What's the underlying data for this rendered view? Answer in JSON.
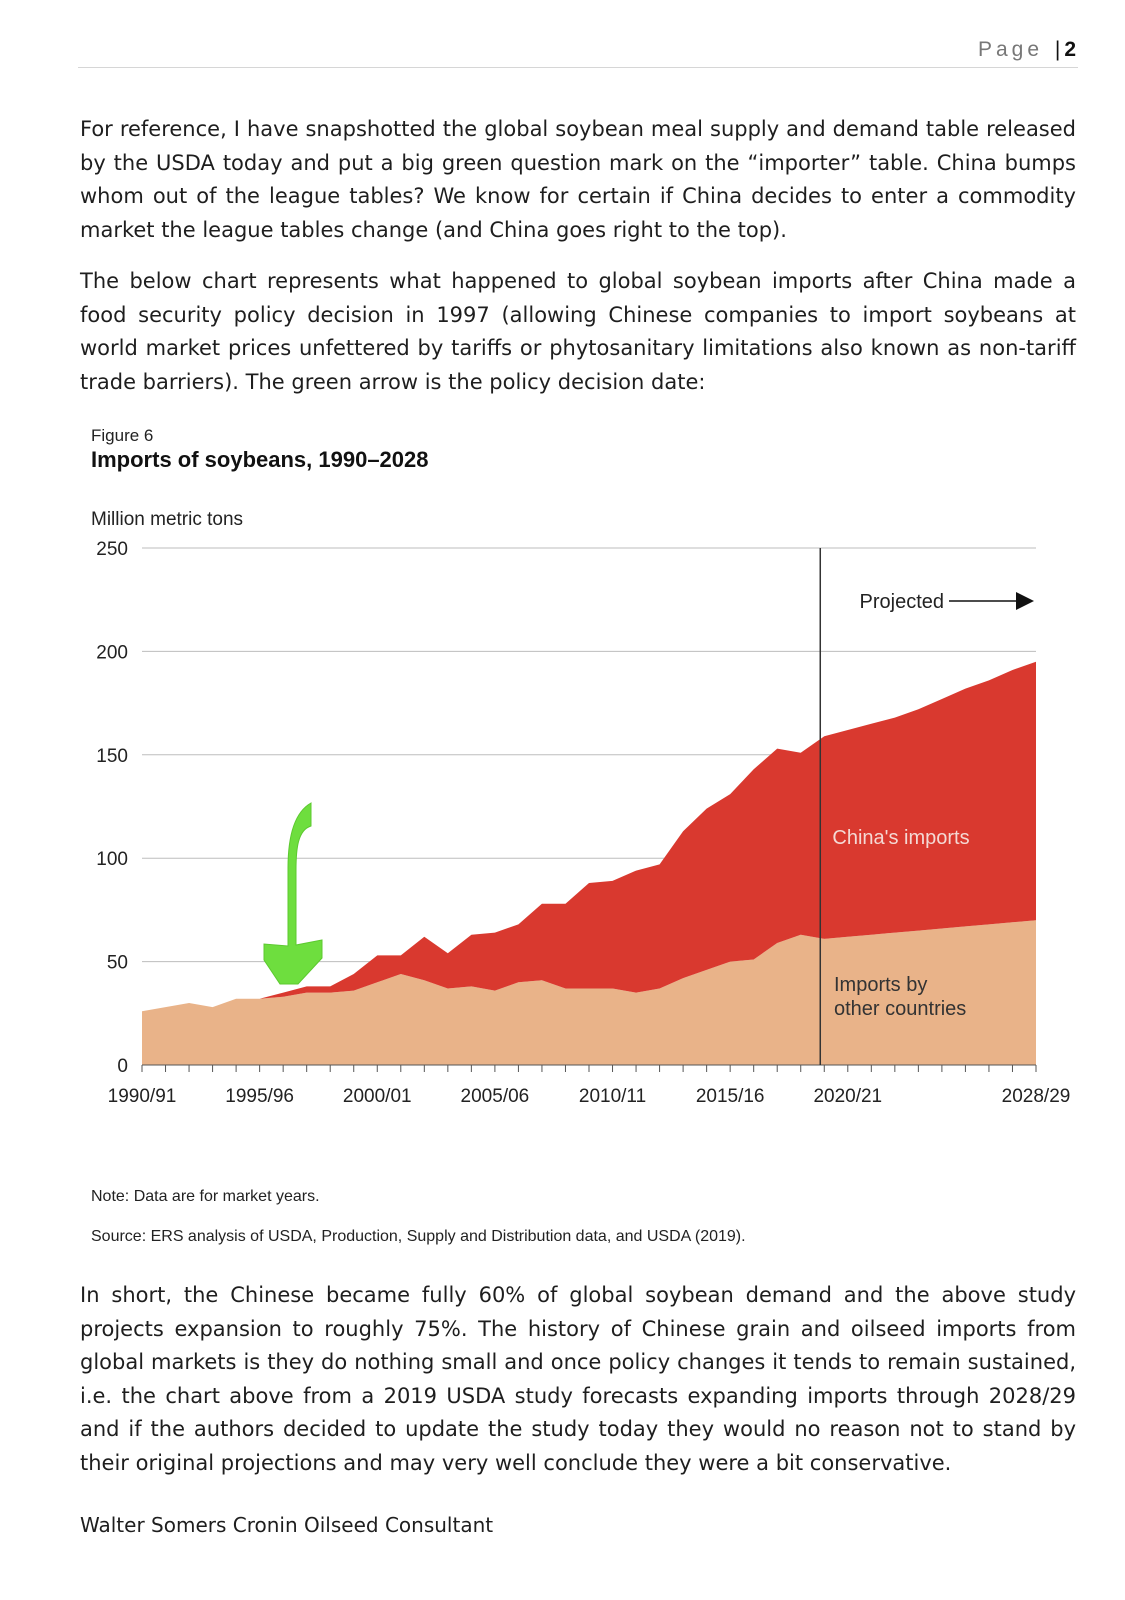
{
  "header": {
    "page_word": "Page",
    "separator": "|",
    "page_number": "2"
  },
  "paragraphs": [
    "For reference, I have snapshotted the global soybean meal supply and demand table released by the USDA today and put a big green question mark on the “importer” table. China bumps whom out of the league tables? We know for certain if China decides to enter a commodity market the league tables change (and China goes right to the top).",
    "The below chart represents what happened to global soybean imports after China made a food security policy decision in 1997 (allowing Chinese companies to import soybeans at world market prices unfettered by tariffs or phytosanitary limitations also known as non-tariff trade barriers). The green arrow is the policy decision date:",
    "In short, the Chinese became fully 60% of global soybean demand and the above study projects expansion to roughly 75%. The history of Chinese grain and oilseed imports from global markets is they do nothing small and once policy changes it tends to remain sustained, i.e. the chart above from a 2019 USDA study forecasts expanding imports through 2028/29 and if the authors decided to update the study today they would no reason not to stand by their original projections and may very well conclude they were a bit conservative."
  ],
  "figure": {
    "label": "Figure 6",
    "title": "Imports of soybeans, 1990–2028",
    "note": "Note: Data are for market years.",
    "source": "Source: ERS analysis of USDA, Production, Supply and Distribution data, and USDA (2019)."
  },
  "signature": "Walter Somers Cronin Oilseed Consultant",
  "chart_data": {
    "type": "area",
    "stacked": true,
    "title": "Imports of soybeans, 1990–2028",
    "ylabel": "Million metric tons",
    "xlabel": "",
    "ylim": [
      0,
      250
    ],
    "yticks": [
      0,
      50,
      100,
      150,
      200,
      250
    ],
    "grid": true,
    "x": [
      "1990/91",
      "1991/92",
      "1992/93",
      "1993/94",
      "1994/95",
      "1995/96",
      "1996/97",
      "1997/98",
      "1998/99",
      "1999/00",
      "2000/01",
      "2001/02",
      "2002/03",
      "2003/04",
      "2004/05",
      "2005/06",
      "2006/07",
      "2007/08",
      "2008/09",
      "2009/10",
      "2010/11",
      "2011/12",
      "2012/13",
      "2013/14",
      "2014/15",
      "2015/16",
      "2016/17",
      "2017/18",
      "2018/19",
      "2019/20",
      "2020/21",
      "2021/22",
      "2022/23",
      "2023/24",
      "2024/25",
      "2025/26",
      "2026/27",
      "2027/28",
      "2028/29"
    ],
    "xtick_labels": [
      "1990/91",
      "1995/96",
      "2000/01",
      "2005/06",
      "2010/11",
      "2015/16",
      "2020/21",
      "2028/29"
    ],
    "series": [
      {
        "name": "Imports by other countries",
        "label": "Imports by other countries",
        "color": "#e9b389",
        "values": [
          26,
          28,
          30,
          28,
          32,
          32,
          33,
          35,
          35,
          36,
          40,
          44,
          41,
          37,
          38,
          36,
          40,
          41,
          37,
          37,
          37,
          35,
          37,
          42,
          46,
          50,
          51,
          59,
          63,
          61,
          62,
          63,
          64,
          65,
          66,
          67,
          68,
          69,
          70
        ]
      },
      {
        "name": "China's imports",
        "label": "China's imports",
        "color": "#d9392f",
        "values": [
          0,
          0,
          0,
          0,
          0,
          0,
          2,
          3,
          3,
          8,
          13,
          9,
          21,
          17,
          25,
          28,
          28,
          37,
          41,
          51,
          52,
          59,
          60,
          71,
          78,
          81,
          92,
          94,
          88,
          98,
          100,
          102,
          104,
          107,
          111,
          115,
          118,
          122,
          125
        ]
      }
    ],
    "divider": {
      "x": "2019/20",
      "label": "Projected"
    },
    "annotation": {
      "type": "green-arrow",
      "x": "1997/98"
    }
  }
}
